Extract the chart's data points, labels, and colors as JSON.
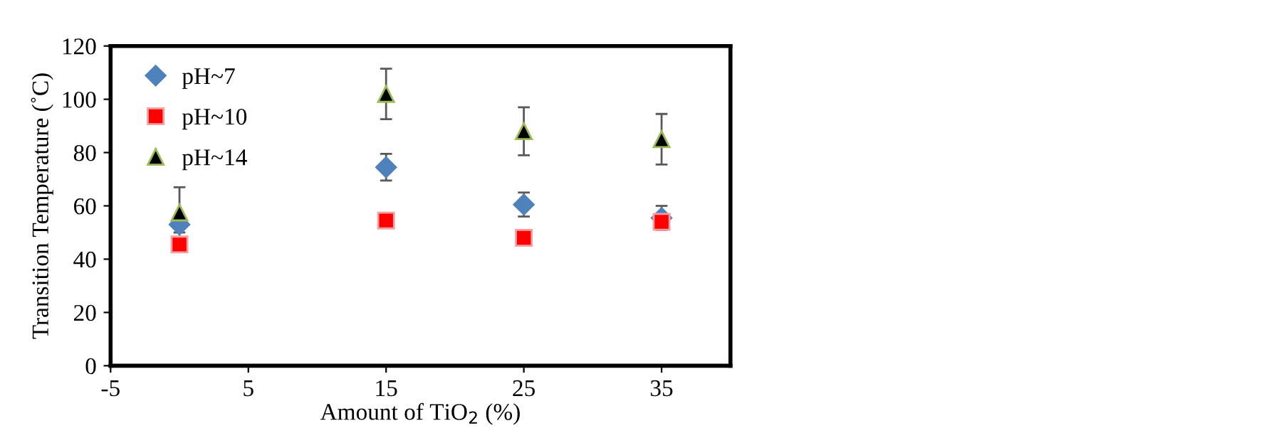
{
  "chart_data": {
    "type": "scatter",
    "xlabel": "Amount of TiO$_{2}$ (%)",
    "ylabel": "Transition Temperature (˚C)",
    "x": [
      0,
      15,
      25,
      35
    ],
    "xlim": [
      -5,
      40
    ],
    "xticks": [
      -5,
      5,
      15,
      25,
      35
    ],
    "ylim": [
      0,
      120
    ],
    "yticks": [
      0,
      20,
      40,
      60,
      80,
      100,
      120
    ],
    "grid": false,
    "legend": "top left",
    "series": [
      {
        "name": "pH~7",
        "color": "#4f81bd",
        "marker": "diamond",
        "values": [
          53,
          74.5,
          60.5,
          55.5
        ],
        "errors": [
          3,
          5,
          4.5,
          4.5
        ]
      },
      {
        "name": "pH~10",
        "color": "#ff0000",
        "marker": "square",
        "values": [
          45.5,
          54.5,
          48,
          54
        ]
      },
      {
        "name": "pH~14",
        "color": "#000000",
        "marker": "triangle",
        "values": [
          57.5,
          102,
          88,
          85
        ],
        "errors": [
          9.5,
          9.5,
          9,
          9.5
        ]
      }
    ]
  }
}
